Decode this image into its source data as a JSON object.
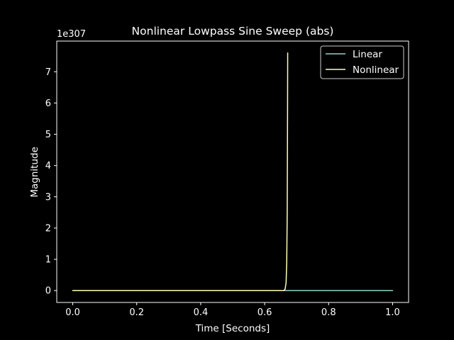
{
  "chart_data": {
    "type": "line",
    "title": "Nonlinear Lowpass Sine Sweep (abs)",
    "xlabel": "Time [Seconds]",
    "ylabel": "Magnitude",
    "offset_label": "1e307",
    "xlim": [
      -0.05,
      1.05
    ],
    "ylim": [
      -0.38,
      7.98
    ],
    "xticks": [
      0.0,
      0.2,
      0.4,
      0.6,
      0.8,
      1.0
    ],
    "xtick_labels": [
      "0.0",
      "0.2",
      "0.4",
      "0.6",
      "0.8",
      "1.0"
    ],
    "yticks": [
      0,
      1,
      2,
      3,
      4,
      5,
      6,
      7
    ],
    "ytick_labels": [
      "0",
      "1",
      "2",
      "3",
      "4",
      "5",
      "6",
      "7"
    ],
    "grid": false,
    "legend_position": "top-right",
    "background_color": "#000000",
    "foreground_color": "#ffffff",
    "series": [
      {
        "name": "Linear",
        "color": "#8dd3c7",
        "x": [
          0.0,
          0.2,
          0.4,
          0.6,
          0.8,
          1.0
        ],
        "y": [
          0,
          0,
          0,
          0,
          0,
          0
        ]
      },
      {
        "name": "Nonlinear",
        "color": "#ffffb3",
        "x": [
          0.0,
          0.2,
          0.4,
          0.6,
          0.66,
          0.664,
          0.667,
          0.669,
          0.6705,
          0.6715,
          0.672
        ],
        "y": [
          0,
          0,
          0,
          0,
          0,
          0.05,
          0.25,
          0.9,
          2.5,
          5.5,
          7.6
        ]
      }
    ]
  }
}
